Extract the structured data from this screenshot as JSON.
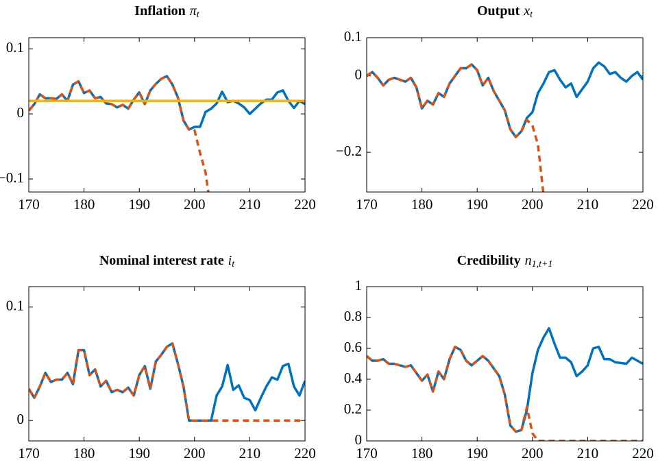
{
  "chart_data": [
    {
      "type": "line",
      "title": "Inflation",
      "title_math": "π",
      "title_sub": "t",
      "x": [
        170,
        171,
        172,
        173,
        174,
        175,
        176,
        177,
        178,
        179,
        180,
        181,
        182,
        183,
        184,
        185,
        186,
        187,
        188,
        189,
        190,
        191,
        192,
        193,
        194,
        195,
        196,
        197,
        198,
        199,
        200,
        201,
        202,
        203,
        204,
        205,
        206,
        207,
        208,
        209,
        210,
        211,
        212,
        213,
        214,
        215,
        216,
        217,
        218,
        219,
        220
      ],
      "series": [
        {
          "color": "#0072BD",
          "values": [
            0.005,
            0.015,
            0.03,
            0.024,
            0.024,
            0.023,
            0.03,
            0.02,
            0.045,
            0.05,
            0.032,
            0.036,
            0.024,
            0.026,
            0.016,
            0.015,
            0.01,
            0.014,
            0.008,
            0.022,
            0.033,
            0.015,
            0.036,
            0.046,
            0.054,
            0.058,
            0.045,
            0.025,
            -0.01,
            -0.024,
            -0.02,
            -0.02,
            0.003,
            0.008,
            0.016,
            0.034,
            0.018,
            0.02,
            0.016,
            0.01,
            0.0,
            0.008,
            0.016,
            0.022,
            0.022,
            0.033,
            0.036,
            0.02,
            0.009,
            0.02,
            0.015
          ]
        },
        {
          "color": "#D95319",
          "values": [
            0.005,
            0.015,
            0.03,
            0.024,
            0.024,
            0.023,
            0.03,
            0.02,
            0.045,
            0.05,
            0.032,
            0.036,
            0.024,
            0.026,
            0.016,
            0.015,
            0.01,
            0.014,
            0.008,
            0.022,
            0.033,
            0.015,
            0.036,
            0.046,
            0.054,
            0.058,
            0.045,
            0.025,
            -0.01,
            -0.024,
            -0.025,
            -0.06,
            -0.09,
            -0.15,
            null,
            null,
            null,
            null,
            null,
            null,
            null,
            null,
            null,
            null,
            null,
            null,
            null,
            null,
            null,
            null,
            null
          ]
        }
      ],
      "reference_line": {
        "value": 0.02,
        "color": "#EDB120"
      },
      "xlim": [
        170,
        220
      ],
      "xticks": [
        170,
        180,
        190,
        200,
        210,
        220
      ],
      "ylim": [
        -0.12,
        0.117
      ],
      "yticks": [
        {
          "value": -0.1,
          "label": "−0.1"
        },
        0,
        0.1
      ]
    },
    {
      "type": "line",
      "title": "Output",
      "title_math": "x",
      "title_sub": "t",
      "x": [
        170,
        171,
        172,
        173,
        174,
        175,
        176,
        177,
        178,
        179,
        180,
        181,
        182,
        183,
        184,
        185,
        186,
        187,
        188,
        189,
        190,
        191,
        192,
        193,
        194,
        195,
        196,
        197,
        198,
        199,
        200,
        201,
        202,
        203,
        204,
        205,
        206,
        207,
        208,
        209,
        210,
        211,
        212,
        213,
        214,
        215,
        216,
        217,
        218,
        219,
        220
      ],
      "series": [
        {
          "color": "#0072BD",
          "values": [
            0.0,
            0.01,
            -0.005,
            -0.025,
            -0.01,
            -0.005,
            -0.01,
            -0.015,
            -0.005,
            -0.03,
            -0.085,
            -0.065,
            -0.075,
            -0.045,
            -0.055,
            -0.02,
            0.0,
            0.02,
            0.02,
            0.03,
            0.015,
            -0.025,
            -0.005,
            -0.04,
            -0.065,
            -0.09,
            -0.14,
            -0.16,
            -0.145,
            -0.11,
            -0.095,
            -0.045,
            -0.02,
            0.01,
            0.015,
            -0.01,
            -0.03,
            -0.02,
            -0.055,
            -0.035,
            -0.015,
            0.02,
            0.035,
            0.025,
            0.005,
            0.01,
            -0.005,
            -0.015,
            0.0,
            0.01,
            -0.01
          ]
        },
        {
          "color": "#D95319",
          "values": [
            0.0,
            0.01,
            -0.005,
            -0.025,
            -0.01,
            -0.005,
            -0.01,
            -0.015,
            -0.005,
            -0.03,
            -0.085,
            -0.065,
            -0.075,
            -0.045,
            -0.055,
            -0.02,
            0.0,
            0.02,
            0.02,
            0.03,
            0.015,
            -0.025,
            -0.005,
            -0.04,
            -0.065,
            -0.09,
            -0.14,
            -0.16,
            -0.145,
            -0.115,
            -0.13,
            -0.18,
            -0.31,
            null,
            null,
            null,
            null,
            null,
            null,
            null,
            null,
            null,
            null,
            null,
            null,
            null,
            null,
            null,
            null,
            null,
            null
          ]
        }
      ],
      "xlim": [
        170,
        220
      ],
      "xticks": [
        170,
        180,
        190,
        200,
        210,
        220
      ],
      "ylim": [
        -0.304,
        0.1
      ],
      "yticks": [
        {
          "value": -0.2,
          "label": "−0.2"
        },
        0,
        0.1
      ]
    },
    {
      "type": "line",
      "title": "Nominal interest rate",
      "title_math": "i",
      "title_sub": "t",
      "x": [
        170,
        171,
        172,
        173,
        174,
        175,
        176,
        177,
        178,
        179,
        180,
        181,
        182,
        183,
        184,
        185,
        186,
        187,
        188,
        189,
        190,
        191,
        192,
        193,
        194,
        195,
        196,
        197,
        198,
        199,
        200,
        201,
        202,
        203,
        204,
        205,
        206,
        207,
        208,
        209,
        210,
        211,
        212,
        213,
        214,
        215,
        216,
        217,
        218,
        219,
        220
      ],
      "series": [
        {
          "color": "#0072BD",
          "values": [
            0.028,
            0.02,
            0.03,
            0.042,
            0.034,
            0.036,
            0.036,
            0.042,
            0.032,
            0.062,
            0.062,
            0.04,
            0.045,
            0.03,
            0.035,
            0.025,
            0.027,
            0.025,
            0.029,
            0.022,
            0.04,
            0.048,
            0.028,
            0.052,
            0.058,
            0.065,
            0.068,
            0.05,
            0.03,
            0.0,
            0.0,
            0.0,
            0.0,
            0.0,
            0.022,
            0.03,
            0.049,
            0.027,
            0.031,
            0.02,
            0.018,
            0.009,
            0.02,
            0.03,
            0.038,
            0.036,
            0.048,
            0.05,
            0.03,
            0.022,
            0.035
          ]
        },
        {
          "color": "#D95319",
          "values": [
            0.028,
            0.02,
            0.03,
            0.042,
            0.034,
            0.036,
            0.036,
            0.042,
            0.032,
            0.062,
            0.062,
            0.04,
            0.045,
            0.03,
            0.035,
            0.025,
            0.027,
            0.025,
            0.029,
            0.022,
            0.04,
            0.048,
            0.028,
            0.052,
            0.058,
            0.065,
            0.068,
            0.05,
            0.03,
            0.0,
            0.0,
            0.0,
            0.0,
            0.0,
            0.0,
            0.0,
            0.0,
            0.0,
            0.0,
            0.0,
            0.0,
            0.0,
            0.0,
            0.0,
            0.0,
            0.0,
            0.0,
            0.0,
            0.0,
            0.0,
            0.0
          ]
        }
      ],
      "xlim": [
        170,
        220
      ],
      "xticks": [
        170,
        180,
        190,
        200,
        210,
        220
      ],
      "ylim": [
        -0.018,
        0.118
      ],
      "yticks": [
        0,
        0.1
      ]
    },
    {
      "type": "line",
      "title": "Credibility",
      "title_math": "n",
      "title_sub": "1,t+1",
      "x": [
        170,
        171,
        172,
        173,
        174,
        175,
        176,
        177,
        178,
        179,
        180,
        181,
        182,
        183,
        184,
        185,
        186,
        187,
        188,
        189,
        190,
        191,
        192,
        193,
        194,
        195,
        196,
        197,
        198,
        199,
        200,
        201,
        202,
        203,
        204,
        205,
        206,
        207,
        208,
        209,
        210,
        211,
        212,
        213,
        214,
        215,
        216,
        217,
        218,
        219,
        220
      ],
      "series": [
        {
          "color": "#0072BD",
          "values": [
            0.55,
            0.52,
            0.52,
            0.53,
            0.5,
            0.5,
            0.49,
            0.48,
            0.49,
            0.44,
            0.39,
            0.43,
            0.32,
            0.45,
            0.4,
            0.53,
            0.61,
            0.59,
            0.52,
            0.49,
            0.52,
            0.55,
            0.52,
            0.47,
            0.42,
            0.3,
            0.1,
            0.06,
            0.07,
            0.2,
            0.44,
            0.59,
            0.67,
            0.73,
            0.63,
            0.54,
            0.54,
            0.51,
            0.42,
            0.45,
            0.49,
            0.6,
            0.61,
            0.53,
            0.53,
            0.51,
            0.505,
            0.5,
            0.54,
            0.52,
            0.5
          ]
        },
        {
          "color": "#D95319",
          "values": [
            0.55,
            0.52,
            0.52,
            0.53,
            0.5,
            0.5,
            0.49,
            0.48,
            0.49,
            0.44,
            0.39,
            0.43,
            0.32,
            0.45,
            0.4,
            0.53,
            0.61,
            0.59,
            0.52,
            0.49,
            0.52,
            0.55,
            0.52,
            0.47,
            0.42,
            0.3,
            0.1,
            0.06,
            0.07,
            0.22,
            0.05,
            0.0,
            0.0,
            0.0,
            0.0,
            0.0,
            0.0,
            0.0,
            0.0,
            0.0,
            0.0,
            0.0,
            0.0,
            0.0,
            0.0,
            0.0,
            0.0,
            0.0,
            0.0,
            0.0,
            0.0
          ]
        }
      ],
      "xlim": [
        170,
        220
      ],
      "xticks": [
        170,
        180,
        190,
        200,
        210,
        220
      ],
      "ylim": [
        0,
        1
      ],
      "yticks": [
        0,
        0.2,
        0.4,
        0.6,
        0.8,
        1
      ]
    }
  ]
}
